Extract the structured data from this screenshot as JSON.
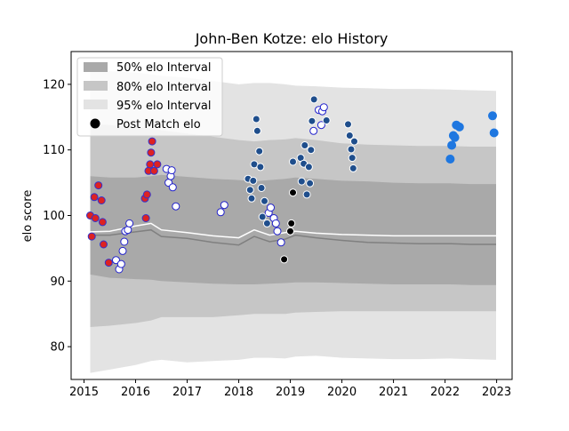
{
  "chart_data": {
    "type": "scatter",
    "title": "John-Ben Kotze: elo History",
    "xlabel": "",
    "ylabel": "elo score",
    "xlim": [
      2014.75,
      2023.3
    ],
    "ylim": [
      75,
      125
    ],
    "xticks": [
      2015,
      2016,
      2017,
      2018,
      2019,
      2020,
      2021,
      2022,
      2023
    ],
    "yticks": [
      80,
      90,
      100,
      110,
      120
    ],
    "grid": false,
    "legend": {
      "placement": "top-left",
      "entries": [
        "50% elo Interval",
        "80% elo Interval",
        "95% elo Interval",
        "Post Match elo"
      ]
    },
    "colors": {
      "band50": "#a9a9a9",
      "band80": "#c6c6c6",
      "band95": "#e3e3e3",
      "mean_line": "#ffffff",
      "median_line": "#808080",
      "series_red_fill": "#dd2222",
      "series_red_edge": "#3333cc",
      "series_white_fill": "#ffffff",
      "series_white_edge": "#2222cc",
      "series_navy": "#1f4e8c",
      "series_light_edge": "#1f4e8c",
      "series_black": "#000000",
      "series_blue": "#1f77e0"
    },
    "bands": {
      "x": [
        2015.12,
        2015.5,
        2016.0,
        2016.3,
        2016.5,
        2017.0,
        2017.5,
        2018.0,
        2018.3,
        2018.6,
        2018.9,
        2019.1,
        2019.5,
        2020.0,
        2020.5,
        2021.0,
        2021.5,
        2022.1,
        2022.5,
        2022.99
      ],
      "p95_low": [
        76,
        76.5,
        77.2,
        77.8,
        78,
        77.6,
        77.8,
        78,
        78.3,
        78.3,
        78.2,
        78.5,
        78.6,
        78.3,
        78.2,
        78.1,
        78.1,
        78.2,
        78.1,
        78
      ],
      "p95_high": [
        122,
        122,
        121.8,
        121.5,
        121.3,
        121,
        120.5,
        120,
        120.2,
        120.2,
        120,
        119.8,
        119.7,
        119.5,
        119.4,
        119.3,
        119.3,
        119.2,
        119.1,
        119
      ],
      "p80_low": [
        83,
        83.2,
        83.6,
        84,
        84.5,
        84.5,
        84.5,
        84.8,
        85,
        85,
        85,
        85.2,
        85.3,
        85.4,
        85.4,
        85.4,
        85.4,
        85.4,
        85.4,
        85.4
      ],
      "p80_high": [
        114,
        113.8,
        113.5,
        113.3,
        113,
        112.5,
        112,
        111.5,
        111.3,
        111.5,
        111.6,
        111.8,
        111.5,
        111,
        110.8,
        110.7,
        110.6,
        110.6,
        110.5,
        110.5
      ],
      "p50_low": [
        91,
        90.5,
        90.3,
        90.2,
        90,
        89.8,
        89.6,
        89.5,
        89.5,
        89.6,
        89.7,
        89.8,
        89.8,
        89.7,
        89.6,
        89.5,
        89.5,
        89.5,
        89.4,
        89.4
      ],
      "p50_high": [
        106,
        105.8,
        105.8,
        106,
        106.2,
        105.9,
        105.6,
        105.4,
        105.2,
        105.4,
        105.6,
        105.8,
        105.6,
        105.3,
        105.2,
        105.0,
        104.9,
        104.9,
        104.8,
        104.8
      ],
      "mean": [
        97.5,
        97.6,
        98.4,
        98.8,
        97.8,
        97.4,
        96.9,
        96.6,
        97.8,
        97.0,
        97.4,
        97.6,
        97.3,
        97.1,
        97.0,
        96.9,
        96.9,
        96.9,
        96.9,
        96.9
      ],
      "median": [
        97,
        97.0,
        97.5,
        97.8,
        96.8,
        96.5,
        95.9,
        95.5,
        96.8,
        96.0,
        96.4,
        97.0,
        96.6,
        96.2,
        95.9,
        95.8,
        95.7,
        95.7,
        95.6,
        95.6
      ]
    },
    "series": [
      {
        "style": "red",
        "points": [
          [
            2015.12,
            100
          ],
          [
            2015.15,
            96.8
          ],
          [
            2015.2,
            102.8
          ],
          [
            2015.22,
            99.6
          ],
          [
            2015.28,
            104.6
          ],
          [
            2015.34,
            102.3
          ],
          [
            2015.36,
            99
          ],
          [
            2015.38,
            95.6
          ],
          [
            2015.48,
            92.8
          ],
          [
            2016.18,
            102.6
          ],
          [
            2016.22,
            103.2
          ],
          [
            2016.2,
            99.6
          ],
          [
            2016.25,
            106.8
          ],
          [
            2016.28,
            107.8
          ],
          [
            2016.3,
            109.6
          ],
          [
            2016.32,
            111.3
          ],
          [
            2016.36,
            106.8
          ],
          [
            2016.42,
            107.8
          ]
        ]
      },
      {
        "style": "white",
        "points": [
          [
            2015.62,
            93.2
          ],
          [
            2015.68,
            91.8
          ],
          [
            2015.72,
            92.6
          ],
          [
            2015.75,
            94.6
          ],
          [
            2015.78,
            96
          ],
          [
            2015.8,
            97.6
          ],
          [
            2015.85,
            97.8
          ],
          [
            2015.88,
            98.8
          ],
          [
            2016.6,
            107.1
          ],
          [
            2016.64,
            105
          ],
          [
            2016.68,
            106
          ],
          [
            2016.7,
            106.9
          ],
          [
            2016.72,
            104.3
          ],
          [
            2016.78,
            101.4
          ],
          [
            2017.65,
            100.5
          ],
          [
            2017.72,
            101.6
          ],
          [
            2018.58,
            100.4
          ],
          [
            2018.62,
            101.2
          ],
          [
            2018.68,
            99.6
          ],
          [
            2018.72,
            98.8
          ],
          [
            2018.75,
            97.6
          ],
          [
            2018.82,
            95.9
          ],
          [
            2019.45,
            112.9
          ],
          [
            2019.55,
            116.1
          ],
          [
            2019.62,
            115.9
          ],
          [
            2019.65,
            116.5
          ],
          [
            2019.6,
            113.8
          ]
        ]
      },
      {
        "style": "navy",
        "points": [
          [
            2018.18,
            105.6
          ],
          [
            2018.22,
            103.9
          ],
          [
            2018.25,
            102.6
          ],
          [
            2018.28,
            105.3
          ],
          [
            2018.3,
            107.8
          ],
          [
            2018.34,
            114.7
          ],
          [
            2018.36,
            112.9
          ],
          [
            2018.4,
            109.8
          ],
          [
            2018.42,
            107.4
          ],
          [
            2018.44,
            104.2
          ],
          [
            2018.46,
            99.8
          ],
          [
            2018.5,
            102.2
          ],
          [
            2018.55,
            98.8
          ],
          [
            2019.05,
            108.2
          ],
          [
            2019.2,
            108.8
          ],
          [
            2019.22,
            105.2
          ],
          [
            2019.26,
            107.9
          ],
          [
            2019.28,
            110.7
          ],
          [
            2019.32,
            103.2
          ],
          [
            2019.36,
            107.4
          ],
          [
            2019.38,
            104.9
          ],
          [
            2019.4,
            110
          ],
          [
            2019.42,
            114.4
          ],
          [
            2019.46,
            117.7
          ],
          [
            2019.7,
            114.5
          ],
          [
            2020.12,
            113.9
          ],
          [
            2020.15,
            112.2
          ],
          [
            2020.18,
            110.1
          ],
          [
            2020.2,
            108.8
          ],
          [
            2020.22,
            107.2
          ],
          [
            2020.24,
            111.3
          ]
        ]
      },
      {
        "style": "black",
        "points": [
          [
            2018.88,
            93.3
          ],
          [
            2019.0,
            97.6
          ],
          [
            2019.02,
            98.8
          ],
          [
            2019.05,
            103.5
          ]
        ]
      },
      {
        "style": "blue",
        "points": [
          [
            2022.1,
            108.6
          ],
          [
            2022.13,
            110.7
          ],
          [
            2022.16,
            112.2
          ],
          [
            2022.19,
            111.9
          ],
          [
            2022.22,
            113.8
          ],
          [
            2022.28,
            113.5
          ],
          [
            2022.92,
            115.2
          ],
          [
            2022.95,
            112.6
          ]
        ]
      }
    ]
  }
}
